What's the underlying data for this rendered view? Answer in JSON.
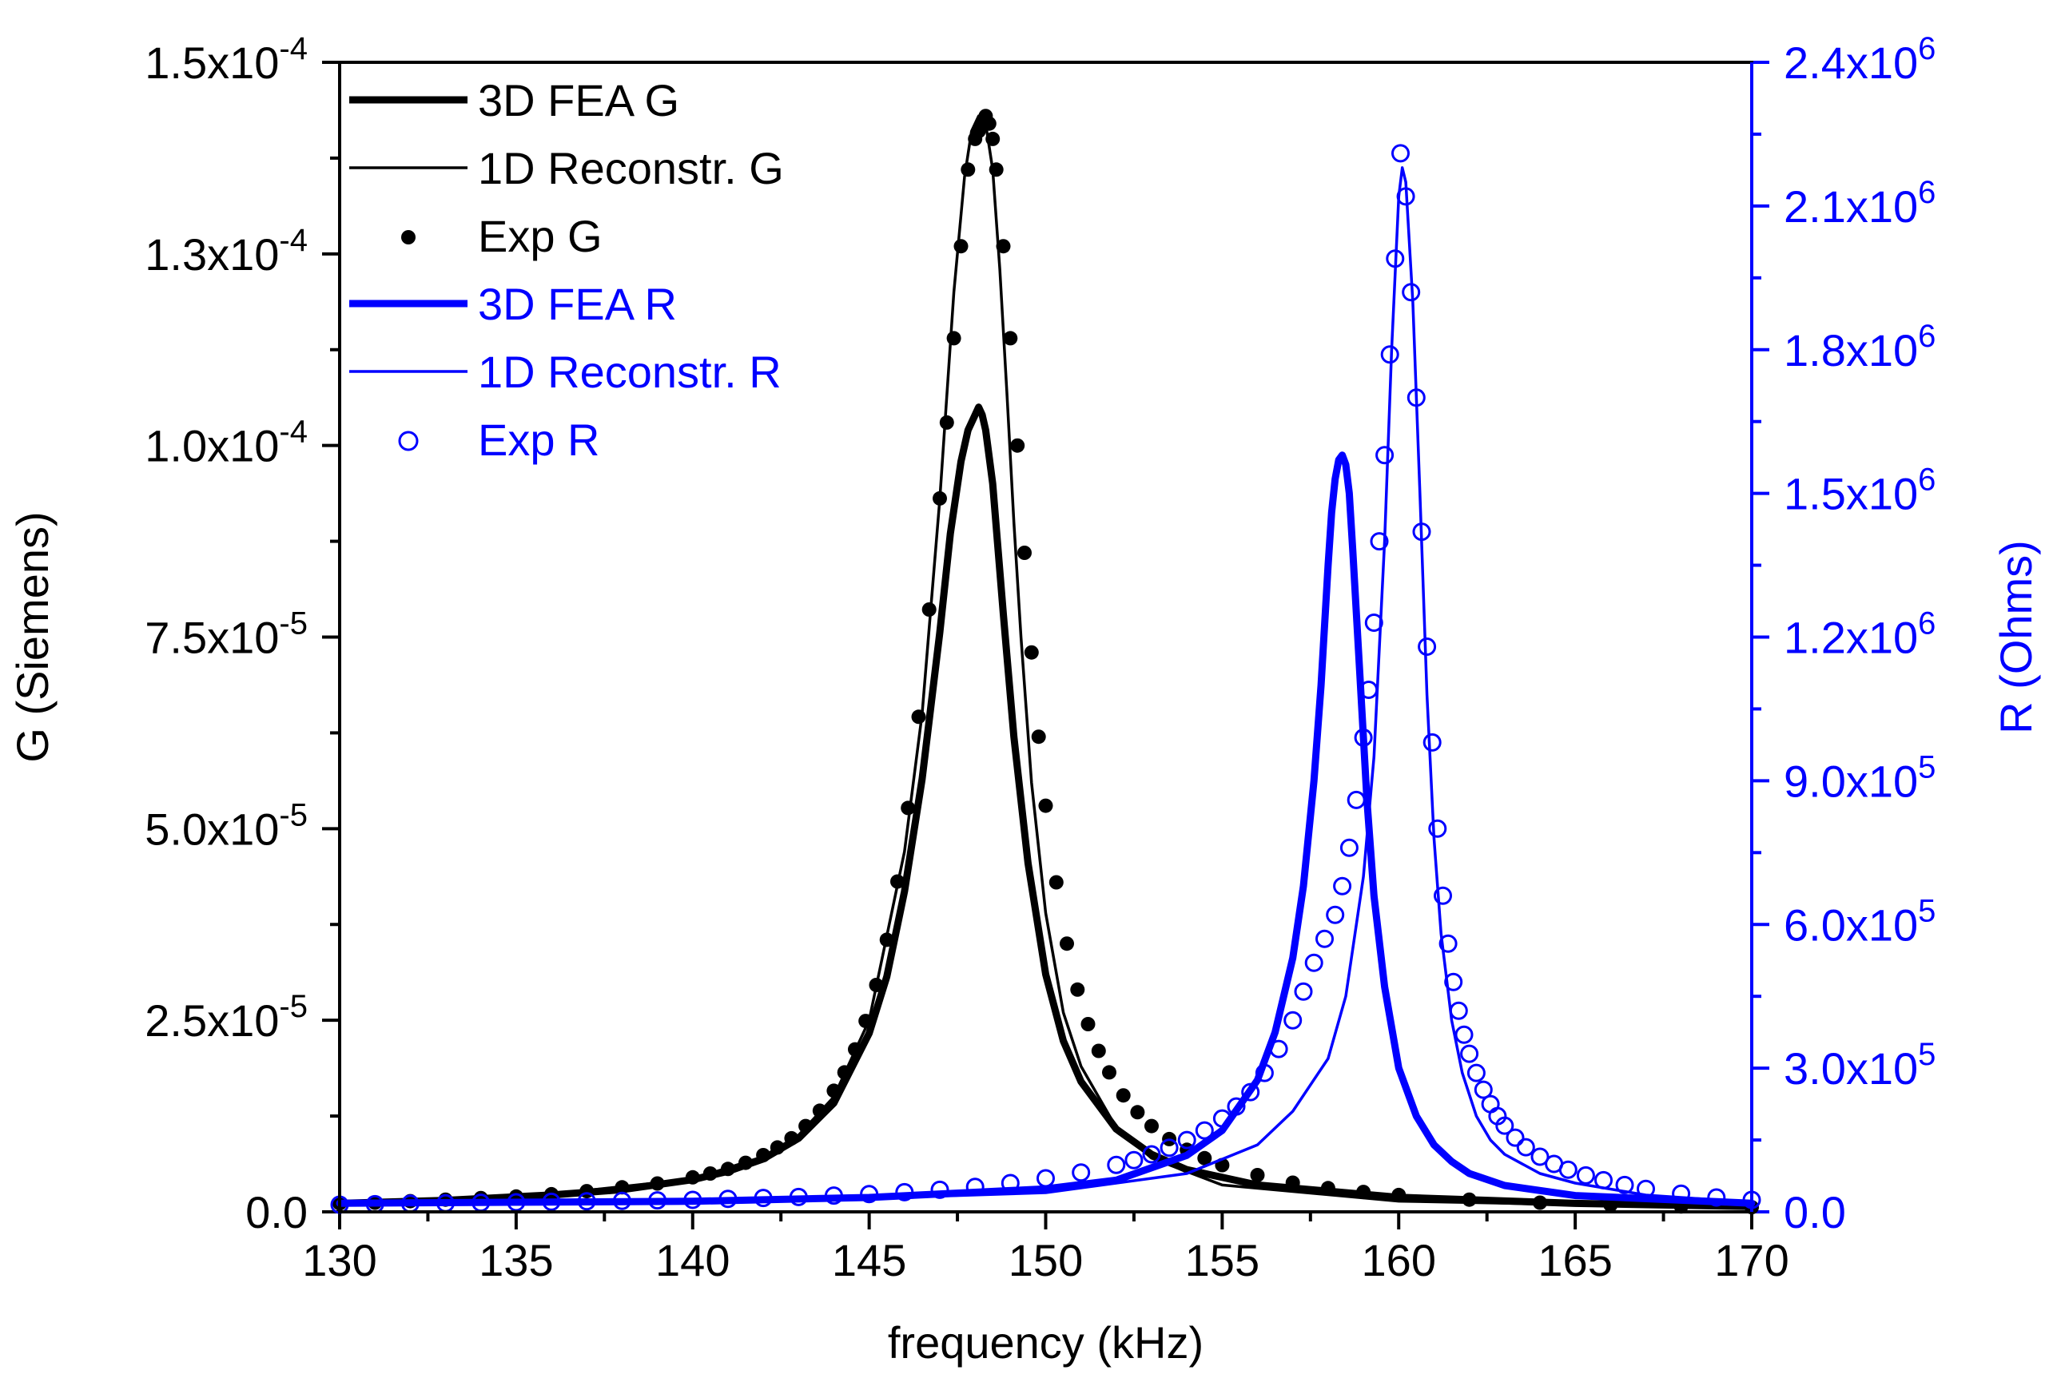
{
  "chart_data": {
    "type": "line",
    "title": "",
    "xlabel": "frequency (kHz)",
    "ylabel_left": "G (Siemens)",
    "ylabel_right": "R (Ohms)",
    "xlim": [
      130,
      170
    ],
    "ylim_left": [
      0,
      0.00015
    ],
    "ylim_right": [
      0,
      2400000
    ],
    "grid": false,
    "legend_position": "top-left",
    "colors": {
      "g": "#000000",
      "r": "#0000ff"
    },
    "x_ticks": [
      "130",
      "135",
      "140",
      "145",
      "150",
      "155",
      "160",
      "165",
      "170"
    ],
    "y_left_ticks": [
      {
        "mantissa": "0.0",
        "exp": ""
      },
      {
        "mantissa": "2.5x10",
        "exp": "-5"
      },
      {
        "mantissa": "5.0x10",
        "exp": "-5"
      },
      {
        "mantissa": "7.5x10",
        "exp": "-5"
      },
      {
        "mantissa": "1.0x10",
        "exp": "-4"
      },
      {
        "mantissa": "1.3x10",
        "exp": "-4"
      },
      {
        "mantissa": "1.5x10",
        "exp": "-4"
      }
    ],
    "y_right_ticks": [
      {
        "mantissa": "0.0",
        "exp": ""
      },
      {
        "mantissa": "3.0x10",
        "exp": "5"
      },
      {
        "mantissa": "6.0x10",
        "exp": "5"
      },
      {
        "mantissa": "9.0x10",
        "exp": "5"
      },
      {
        "mantissa": "1.2x10",
        "exp": "6"
      },
      {
        "mantissa": "1.5x10",
        "exp": "6"
      },
      {
        "mantissa": "1.8x10",
        "exp": "6"
      },
      {
        "mantissa": "2.1x10",
        "exp": "6"
      },
      {
        "mantissa": "2.4x10",
        "exp": "6"
      }
    ],
    "legend": [
      {
        "label": "3D FEA G",
        "style": "thick-line",
        "color": "#000000"
      },
      {
        "label": "1D Reconstr. G",
        "style": "thin-line",
        "color": "#000000"
      },
      {
        "label": "Exp G",
        "style": "filled-circle",
        "color": "#000000"
      },
      {
        "label": "3D FEA R",
        "style": "thick-line",
        "color": "#0000ff"
      },
      {
        "label": "1D Reconstr. R",
        "style": "thin-line",
        "color": "#0000ff"
      },
      {
        "label": "Exp R",
        "style": "open-circle",
        "color": "#0000ff"
      }
    ],
    "series": [
      {
        "name": "3D FEA G",
        "axis": "left",
        "color": "#000000",
        "style": "thick-line",
        "x": [
          130,
          133,
          136,
          138,
          140,
          141,
          142,
          143,
          144,
          145,
          145.5,
          146,
          146.5,
          147,
          147.3,
          147.6,
          147.8,
          148,
          148.1,
          148.2,
          148.3,
          148.5,
          148.8,
          149.1,
          149.5,
          150,
          150.5,
          151,
          152,
          153,
          154,
          156,
          160,
          165,
          170
        ],
        "y": [
          1.1e-06,
          1.5e-06,
          2.2e-06,
          2.9e-06,
          4.2e-06,
          5.3e-06,
          6.9e-06,
          9.6e-06,
          1.42e-05,
          2.33e-05,
          3.07e-05,
          4.18e-05,
          5.65e-05,
          7.56e-05,
          8.85e-05,
          9.79e-05,
          0.000102,
          0.000104,
          0.000105,
          0.000104,
          0.000102,
          9.5e-05,
          7.8e-05,
          6.2e-05,
          4.55e-05,
          3.1e-05,
          2.23e-05,
          1.7e-05,
          1.08e-05,
          7.5e-06,
          5.5e-06,
          3.5e-06,
          1.9e-06,
          1.1e-06,
          7e-07
        ]
      },
      {
        "name": "1D Reconstr. G",
        "axis": "left",
        "color": "#000000",
        "style": "thin-line",
        "x": [
          130,
          135,
          140,
          142,
          143,
          144,
          145,
          146,
          146.5,
          147,
          147.4,
          147.7,
          147.9,
          148.1,
          148.3,
          148.5,
          148.7,
          148.9,
          149.1,
          149.3,
          149.6,
          150,
          150.5,
          151,
          152,
          153,
          155,
          160,
          170
        ],
        "y": [
          1.1e-06,
          1.8e-06,
          4.3e-06,
          7.2e-06,
          1e-05,
          1.5e-05,
          2.5e-05,
          4.7e-05,
          6.5e-05,
          9.3e-05,
          0.00012,
          0.000135,
          0.000141,
          0.000143,
          0.000142,
          0.000136,
          0.000123,
          0.000107,
          9e-05,
          7.5e-05,
          5.6e-05,
          3.9e-05,
          2.6e-05,
          1.9e-05,
          1.1e-05,
          7e-06,
          3.5e-06,
          1.4e-06,
          5e-07
        ]
      },
      {
        "name": "Exp G",
        "axis": "left",
        "color": "#000000",
        "style": "filled-circle",
        "x": [
          130,
          131,
          132,
          133,
          134,
          135,
          136,
          137,
          138,
          139,
          140,
          140.5,
          141,
          141.5,
          142,
          142.4,
          142.8,
          143.2,
          143.6,
          144,
          144.3,
          144.6,
          144.9,
          145.2,
          145.5,
          145.8,
          146.1,
          146.4,
          146.7,
          147,
          147.2,
          147.4,
          147.6,
          147.8,
          148,
          148.1,
          148.2,
          148.3,
          148.4,
          148.5,
          148.6,
          148.8,
          149,
          149.2,
          149.4,
          149.6,
          149.8,
          150,
          150.3,
          150.6,
          150.9,
          151.2,
          151.5,
          151.8,
          152.2,
          152.6,
          153,
          153.5,
          154,
          154.5,
          155,
          156,
          157,
          158,
          159,
          160,
          162,
          164,
          166,
          168,
          170
        ],
        "y": [
          1.1e-06,
          1.2e-06,
          1.4e-06,
          1.6e-06,
          1.8e-06,
          2e-06,
          2.3e-06,
          2.7e-06,
          3.2e-06,
          3.7e-06,
          4.5e-06,
          5e-06,
          5.6e-06,
          6.4e-06,
          7.4e-06,
          8.4e-06,
          9.6e-06,
          1.12e-05,
          1.32e-05,
          1.58e-05,
          1.82e-05,
          2.12e-05,
          2.49e-05,
          2.96e-05,
          3.55e-05,
          4.31e-05,
          5.27e-05,
          6.46e-05,
          7.86e-05,
          9.31e-05,
          0.000103,
          0.000114,
          0.000126,
          0.000136,
          0.00014,
          0.000141,
          0.000142,
          0.000143,
          0.000142,
          0.00014,
          0.000136,
          0.000126,
          0.000114,
          0.0001,
          8.6e-05,
          7.3e-05,
          6.2e-05,
          5.3e-05,
          4.3e-05,
          3.5e-05,
          2.9e-05,
          2.45e-05,
          2.1e-05,
          1.82e-05,
          1.52e-05,
          1.3e-05,
          1.12e-05,
          9.5e-06,
          8.1e-06,
          7e-06,
          6.1e-06,
          4.8e-06,
          3.8e-06,
          3.1e-06,
          2.6e-06,
          2.2e-06,
          1.6e-06,
          1.2e-06,
          9e-07,
          7e-07,
          6e-07
        ]
      },
      {
        "name": "3D FEA R",
        "axis": "right",
        "color": "#0000ff",
        "style": "thick-line",
        "x": [
          130,
          140,
          145,
          150,
          152,
          154,
          155,
          156,
          156.5,
          157,
          157.3,
          157.6,
          157.8,
          158,
          158.1,
          158.2,
          158.3,
          158.4,
          158.5,
          158.6,
          158.7,
          158.9,
          159.1,
          159.3,
          159.6,
          160,
          160.5,
          161,
          161.5,
          162,
          163,
          165,
          170
        ],
        "y": [
          18000,
          22000,
          30000,
          48000,
          66000,
          118000,
          170000,
          275000,
          375000,
          530000,
          680000,
          900000,
          1100000,
          1350000,
          1460000,
          1530000,
          1570000,
          1580000,
          1560000,
          1500000,
          1380000,
          1120000,
          860000,
          660000,
          470000,
          300000,
          200000,
          140000,
          105000,
          80000,
          55000,
          34000,
          18000
        ]
      },
      {
        "name": "1D Reconstr. R",
        "axis": "right",
        "color": "#0000ff",
        "style": "thin-line",
        "x": [
          130,
          145,
          150,
          154,
          156,
          157,
          158,
          158.5,
          159,
          159.3,
          159.6,
          159.8,
          160,
          160.1,
          160.2,
          160.4,
          160.6,
          160.8,
          161,
          161.2,
          161.5,
          161.8,
          162.2,
          162.6,
          163,
          164,
          165,
          167,
          170
        ],
        "y": [
          18000,
          28000,
          40000,
          80000,
          140000,
          210000,
          320000,
          450000,
          700000,
          950000,
          1400000,
          1800000,
          2120000,
          2180000,
          2150000,
          1900000,
          1500000,
          1080000,
          780000,
          580000,
          400000,
          290000,
          200000,
          150000,
          120000,
          80000,
          60000,
          35000,
          20000
        ]
      },
      {
        "name": "Exp R",
        "axis": "right",
        "color": "#0000ff",
        "style": "open-circle",
        "x": [
          130,
          131,
          132,
          133,
          134,
          135,
          136,
          137,
          138,
          139,
          140,
          141,
          142,
          143,
          144,
          145,
          146,
          147,
          148,
          149,
          150,
          151,
          152,
          152.5,
          153,
          153.5,
          154,
          154.5,
          155,
          155.4,
          155.8,
          156.2,
          156.6,
          157,
          157.3,
          157.6,
          157.9,
          158.2,
          158.4,
          158.6,
          158.8,
          159,
          159.15,
          159.3,
          159.45,
          159.6,
          159.75,
          159.9,
          160.05,
          160.2,
          160.35,
          160.5,
          160.65,
          160.8,
          160.95,
          161.1,
          161.25,
          161.4,
          161.55,
          161.7,
          161.85,
          162,
          162.2,
          162.4,
          162.6,
          162.8,
          163,
          163.3,
          163.6,
          164,
          164.4,
          164.8,
          165.3,
          165.8,
          166.4,
          167,
          168,
          169,
          170
        ],
        "y": [
          15000,
          16000,
          17000,
          18000,
          19000,
          20000,
          21000,
          22000,
          23000,
          24000,
          25000,
          27000,
          29000,
          31000,
          34000,
          37000,
          41000,
          46000,
          52000,
          60000,
          70000,
          82000,
          98000,
          108000,
          120000,
          134000,
          150000,
          170000,
          195000,
          220000,
          250000,
          290000,
          340000,
          400000,
          460000,
          520000,
          570000,
          620000,
          680000,
          760000,
          860000,
          990000,
          1090000,
          1230000,
          1400000,
          1580000,
          1790000,
          1990000,
          2210000,
          2120000,
          1920000,
          1700000,
          1420000,
          1180000,
          980000,
          800000,
          660000,
          560000,
          480000,
          420000,
          370000,
          330000,
          290000,
          255000,
          225000,
          200000,
          180000,
          155000,
          135000,
          115000,
          100000,
          88000,
          76000,
          66000,
          56000,
          48000,
          38000,
          30000,
          25000
        ]
      }
    ]
  }
}
